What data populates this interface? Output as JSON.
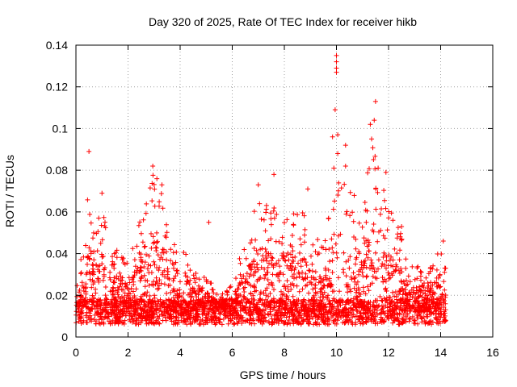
{
  "chart_data": {
    "type": "scatter",
    "title": "Day 320 of 2025, Rate Of TEC Index for receiver hikb",
    "xlabel": "GPS time / hours",
    "ylabel": "ROTI / TECUs",
    "xlim": [
      0,
      16
    ],
    "ylim": [
      0,
      0.14
    ],
    "grid": true,
    "marker": "plus",
    "series_color": "#ff0000",
    "x_ticks": [
      0,
      2,
      4,
      6,
      8,
      10,
      12,
      14,
      16
    ],
    "x_tick_labels": [
      "0",
      "2",
      "4",
      "6",
      "8",
      "10",
      "12",
      "14",
      "16"
    ],
    "y_ticks": [
      0,
      0.02,
      0.04,
      0.06,
      0.08,
      0.1,
      0.12,
      0.14
    ],
    "y_tick_labels": [
      "0",
      "0.02",
      "0.04",
      "0.06",
      "0.08",
      "0.1",
      "0.12",
      "0.14"
    ],
    "x_data_range": [
      0,
      14.2
    ],
    "baseline_roti": 0.012,
    "envelope": [
      [
        0.0,
        0.025
      ],
      [
        0.3,
        0.045
      ],
      [
        0.5,
        0.075
      ],
      [
        0.7,
        0.05
      ],
      [
        1.0,
        0.065
      ],
      [
        1.3,
        0.04
      ],
      [
        1.7,
        0.045
      ],
      [
        2.0,
        0.035
      ],
      [
        2.5,
        0.06
      ],
      [
        3.0,
        0.08
      ],
      [
        3.4,
        0.065
      ],
      [
        3.8,
        0.045
      ],
      [
        4.2,
        0.04
      ],
      [
        4.6,
        0.035
      ],
      [
        5.0,
        0.03
      ],
      [
        5.5,
        0.02
      ],
      [
        6.0,
        0.025
      ],
      [
        6.5,
        0.05
      ],
      [
        7.0,
        0.07
      ],
      [
        7.5,
        0.065
      ],
      [
        8.0,
        0.06
      ],
      [
        8.5,
        0.07
      ],
      [
        9.0,
        0.05
      ],
      [
        9.5,
        0.045
      ],
      [
        10.0,
        0.08
      ],
      [
        10.5,
        0.07
      ],
      [
        11.0,
        0.065
      ],
      [
        11.5,
        0.1
      ],
      [
        12.0,
        0.065
      ],
      [
        12.5,
        0.05
      ],
      [
        13.0,
        0.035
      ],
      [
        13.5,
        0.03
      ],
      [
        14.0,
        0.045
      ],
      [
        14.2,
        0.035
      ]
    ],
    "notable_points": [
      {
        "x": 0.5,
        "y": 0.089
      },
      {
        "x": 1.0,
        "y": 0.069
      },
      {
        "x": 2.95,
        "y": 0.082
      },
      {
        "x": 3.3,
        "y": 0.073
      },
      {
        "x": 5.1,
        "y": 0.055
      },
      {
        "x": 7.0,
        "y": 0.073
      },
      {
        "x": 7.6,
        "y": 0.078
      },
      {
        "x": 8.9,
        "y": 0.071
      },
      {
        "x": 9.9,
        "y": 0.081
      },
      {
        "x": 10.0,
        "y": 0.135
      },
      {
        "x": 10.0,
        "y": 0.132
      },
      {
        "x": 10.0,
        "y": 0.129
      },
      {
        "x": 10.0,
        "y": 0.127
      },
      {
        "x": 9.95,
        "y": 0.109
      },
      {
        "x": 9.85,
        "y": 0.096
      },
      {
        "x": 10.05,
        "y": 0.097
      },
      {
        "x": 10.05,
        "y": 0.088
      },
      {
        "x": 10.35,
        "y": 0.092
      },
      {
        "x": 10.35,
        "y": 0.082
      },
      {
        "x": 11.3,
        "y": 0.102
      },
      {
        "x": 11.35,
        "y": 0.095
      },
      {
        "x": 11.45,
        "y": 0.104
      },
      {
        "x": 11.5,
        "y": 0.113
      },
      {
        "x": 11.6,
        "y": 0.081
      },
      {
        "x": 11.9,
        "y": 0.079
      },
      {
        "x": 12.5,
        "y": 0.053
      },
      {
        "x": 14.1,
        "y": 0.046
      }
    ]
  }
}
